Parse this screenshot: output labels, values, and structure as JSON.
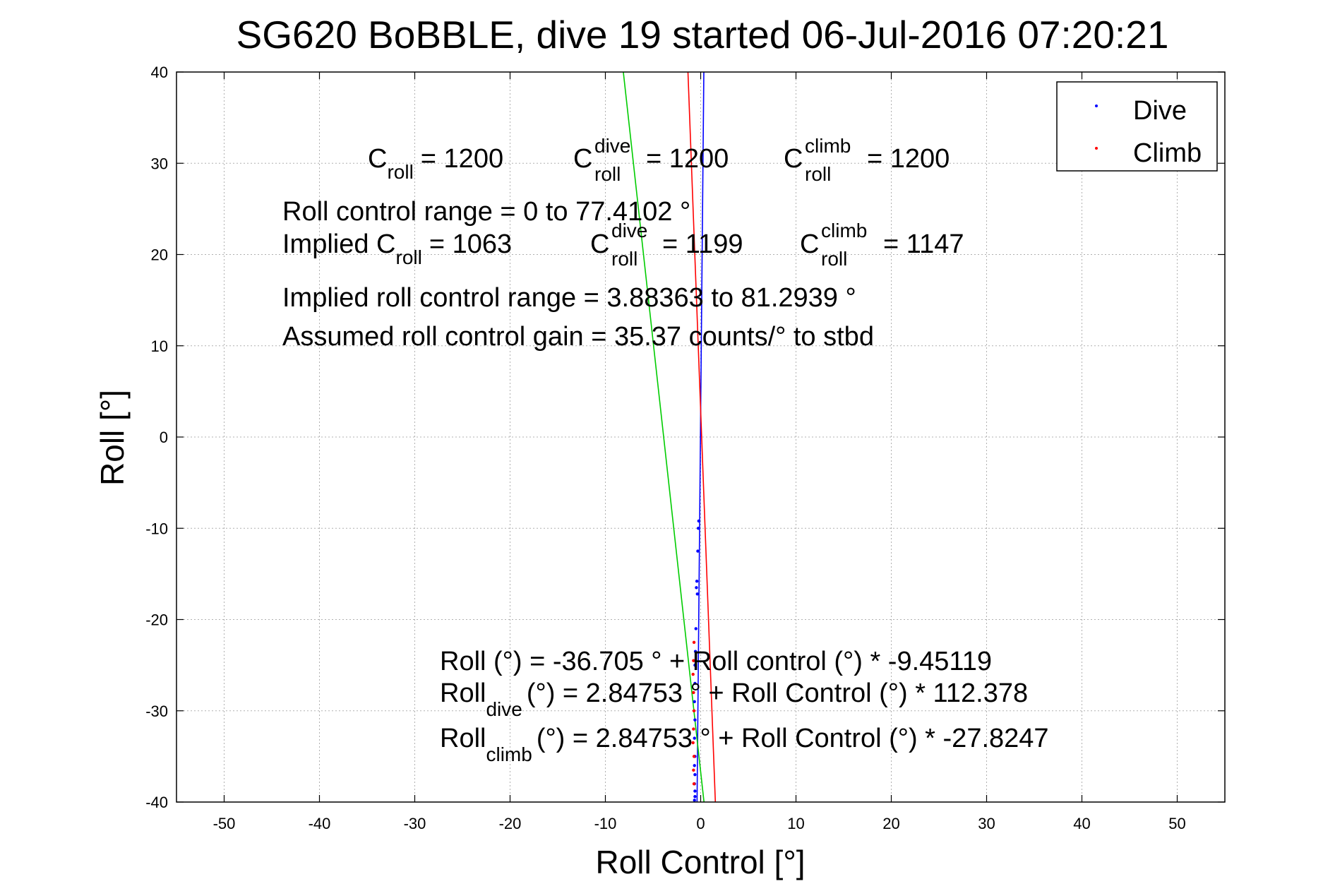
{
  "chart_data": {
    "type": "scatter",
    "title": "SG620 BoBBLE, dive 19 started 06-Jul-2016 07:20:21",
    "xlabel": "Roll Control [°]",
    "ylabel": "Roll [°]",
    "xlim": [
      -55,
      55
    ],
    "ylim": [
      -40,
      40
    ],
    "x_ticks": [
      -50,
      -40,
      -30,
      -20,
      -10,
      0,
      10,
      20,
      30,
      40,
      50
    ],
    "y_ticks": [
      -40,
      -30,
      -20,
      -10,
      0,
      10,
      20,
      30,
      40
    ],
    "grid": true,
    "legend_position": "top-right",
    "series": [
      {
        "name": "Dive",
        "color": "#0000ff",
        "marker": "dot",
        "points": [
          [
            -0.2,
            -9.2
          ],
          [
            -0.25,
            -10.0
          ],
          [
            -0.3,
            -12.5
          ],
          [
            -0.4,
            -15.8
          ],
          [
            -0.45,
            -16.5
          ],
          [
            -0.35,
            -17.2
          ],
          [
            -0.5,
            -21.0
          ],
          [
            -0.55,
            -23.5
          ],
          [
            -0.6,
            -25.0
          ],
          [
            -0.6,
            -27.0
          ],
          [
            -0.65,
            -29.0
          ],
          [
            -0.6,
            -31.0
          ],
          [
            -0.65,
            -33.0
          ],
          [
            -0.6,
            -35.0
          ],
          [
            -0.65,
            -36.0
          ],
          [
            -0.6,
            -37.0
          ],
          [
            -0.65,
            -38.0
          ],
          [
            -0.6,
            -38.8
          ],
          [
            -0.6,
            -39.4
          ],
          [
            -0.65,
            -39.8
          ]
        ]
      },
      {
        "name": "Climb",
        "color": "#ff0000",
        "marker": "dot",
        "points": [
          [
            -0.7,
            -22.5
          ],
          [
            -0.75,
            -24.5
          ],
          [
            -0.8,
            -26.0
          ],
          [
            -0.75,
            -28.0
          ],
          [
            -0.7,
            -30.0
          ],
          [
            -0.75,
            -32.0
          ],
          [
            -0.8,
            -33.5
          ],
          [
            -0.7,
            -35.0
          ],
          [
            -0.75,
            -36.5
          ],
          [
            -0.7,
            -38.0
          ]
        ]
      }
    ],
    "fit_lines": [
      {
        "color": "#0000ff",
        "intercept": 2.84753,
        "slope": 112.378
      },
      {
        "color": "#ff0000",
        "intercept": 2.84753,
        "slope": -27.8247
      },
      {
        "color": "#00cc00",
        "intercept": -36.705,
        "slope": -9.45119
      }
    ]
  },
  "annotations": {
    "c_roll_label": "C",
    "c_roll_sub": "roll",
    "c_roll_value": "= 1200",
    "c_dive_label": "C",
    "c_dive_sup": "dive",
    "c_dive_sub": "roll",
    "c_dive_value": "= 1200",
    "c_climb_label": "C",
    "c_climb_sup": "climb",
    "c_climb_sub": "roll",
    "c_climb_value": "= 1200",
    "range_text": "Roll control range = 0 to 77.4102 °",
    "implied_prefix": "Implied C",
    "implied_sub": "roll",
    "implied_value": "= 1063",
    "implied_dive_label": "C",
    "implied_dive_sup": "dive",
    "implied_dive_sub": "roll",
    "implied_dive_value": "= 1199",
    "implied_climb_label": "C",
    "implied_climb_sup": "climb",
    "implied_climb_sub": "roll",
    "implied_climb_value": "= 1147",
    "implied_range_text": "Implied roll control range = 3.88363 to 81.2939 °",
    "gain_text": "Assumed roll control gain = 35.37 counts/° to stbd",
    "fit_all_text": "Roll (°) = -36.705 ° + Roll control (°) * -9.45119",
    "fit_dive_prefix": "Roll",
    "fit_dive_sub": "dive",
    "fit_dive_text": "(°) = 2.84753 ° + Roll Control (°) * 112.378",
    "fit_climb_prefix": "Roll",
    "fit_climb_sub": "climb",
    "fit_climb_text": "(°) = 2.84753 ° + Roll Control (°) * -27.8247"
  }
}
